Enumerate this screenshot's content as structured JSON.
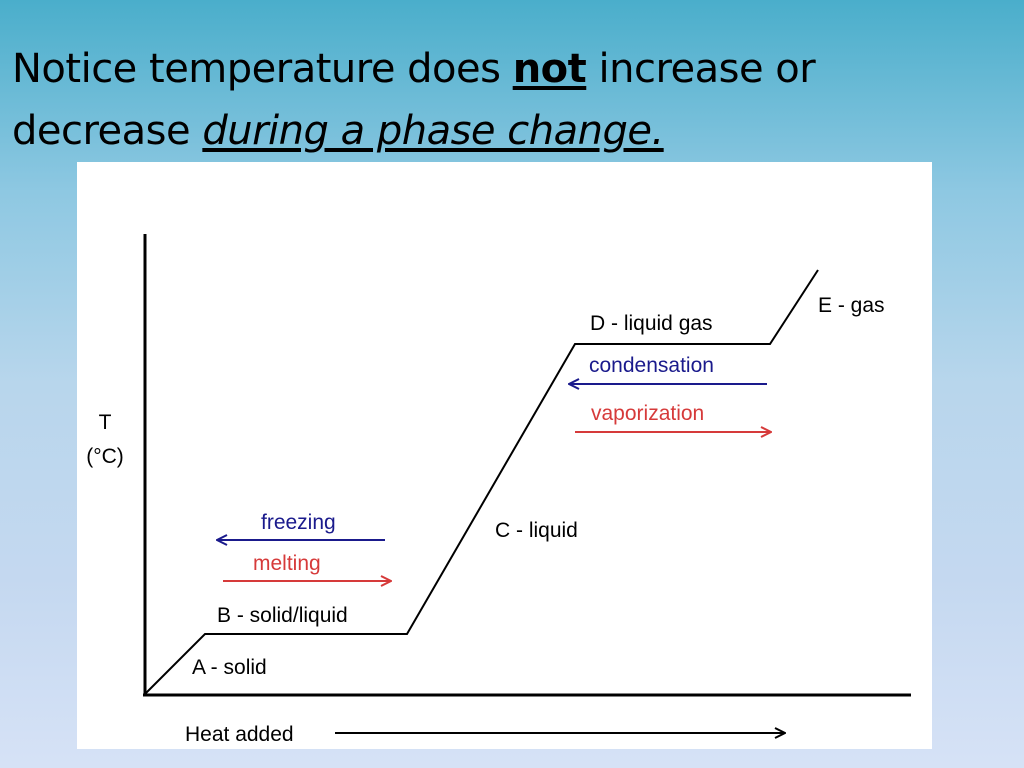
{
  "slide": {
    "title_line1_prefix": "Notice temperature does ",
    "title_bold": "not",
    "title_line1_suffix": " increase or",
    "title_line2_prefix": "decrease ",
    "title_italic": "during a phase change."
  },
  "diagram": {
    "y_axis_label_line1": "T",
    "y_axis_label_line2": "(°C)",
    "x_axis_label": "Heat added",
    "segments": {
      "a": "A - solid",
      "b": "B - solid/liquid",
      "c": "C - liquid",
      "d": "D - liquid gas",
      "e": "E - gas"
    },
    "arrows": {
      "freezing": "freezing",
      "melting": "melting",
      "condensation": "condensation",
      "vaporization": "vaporization"
    },
    "colors": {
      "cooling_arrow": "#1a1a8c",
      "heating_arrow": "#d63a3a",
      "curve": "#000000"
    }
  }
}
